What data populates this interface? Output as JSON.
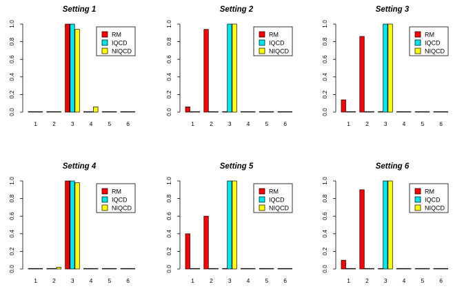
{
  "chart_data": [
    {
      "type": "bar",
      "title": "Setting 1",
      "categories": [
        "1",
        "2",
        "3",
        "4",
        "5",
        "6"
      ],
      "series": [
        {
          "name": "RM",
          "values": [
            0,
            0,
            1.0,
            0,
            0,
            0
          ]
        },
        {
          "name": "IQCD",
          "values": [
            0,
            0,
            1.0,
            0,
            0,
            0
          ]
        },
        {
          "name": "NIQCD",
          "values": [
            0,
            0,
            0.94,
            0.06,
            0,
            0
          ]
        }
      ],
      "ylim": [
        0,
        1
      ],
      "yticks": [
        "0.0",
        "0.2",
        "0.4",
        "0.6",
        "0.8",
        "1.0"
      ],
      "legend_position": "top-right"
    },
    {
      "type": "bar",
      "title": "Setting 2",
      "categories": [
        "1",
        "2",
        "3",
        "4",
        "5",
        "6"
      ],
      "series": [
        {
          "name": "RM",
          "values": [
            0.06,
            0.94,
            0,
            0,
            0,
            0
          ]
        },
        {
          "name": "IQCD",
          "values": [
            0,
            0,
            1.0,
            0,
            0,
            0
          ]
        },
        {
          "name": "NIQCD",
          "values": [
            0,
            0,
            1.0,
            0,
            0,
            0
          ]
        }
      ],
      "ylim": [
        0,
        1
      ],
      "yticks": [
        "0.0",
        "0.2",
        "0.4",
        "0.6",
        "0.8",
        "1.0"
      ],
      "legend_position": "top-right"
    },
    {
      "type": "bar",
      "title": "Setting 3",
      "categories": [
        "1",
        "2",
        "3",
        "4",
        "5",
        "6"
      ],
      "series": [
        {
          "name": "RM",
          "values": [
            0.14,
            0.86,
            0,
            0,
            0,
            0
          ]
        },
        {
          "name": "IQCD",
          "values": [
            0,
            0,
            1.0,
            0,
            0,
            0
          ]
        },
        {
          "name": "NIQCD",
          "values": [
            0,
            0,
            1.0,
            0,
            0,
            0
          ]
        }
      ],
      "ylim": [
        0,
        1
      ],
      "yticks": [
        "0.0",
        "0.2",
        "0.4",
        "0.6",
        "0.8",
        "1.0"
      ],
      "legend_position": "top-right"
    },
    {
      "type": "bar",
      "title": "Setting 4",
      "categories": [
        "1",
        "2",
        "3",
        "4",
        "5",
        "6"
      ],
      "series": [
        {
          "name": "RM",
          "values": [
            0,
            0,
            1.0,
            0,
            0,
            0
          ]
        },
        {
          "name": "IQCD",
          "values": [
            0,
            0,
            1.0,
            0,
            0,
            0
          ]
        },
        {
          "name": "NIQCD",
          "values": [
            0,
            0.02,
            0.98,
            0,
            0,
            0
          ]
        }
      ],
      "ylim": [
        0,
        1
      ],
      "yticks": [
        "0.0",
        "0.2",
        "0.4",
        "0.6",
        "0.8",
        "1.0"
      ],
      "legend_position": "top-right"
    },
    {
      "type": "bar",
      "title": "Setting 5",
      "categories": [
        "1",
        "2",
        "3",
        "4",
        "5",
        "6"
      ],
      "series": [
        {
          "name": "RM",
          "values": [
            0.4,
            0.6,
            0,
            0,
            0,
            0
          ]
        },
        {
          "name": "IQCD",
          "values": [
            0,
            0,
            1.0,
            0,
            0,
            0
          ]
        },
        {
          "name": "NIQCD",
          "values": [
            0,
            0,
            1.0,
            0,
            0,
            0
          ]
        }
      ],
      "ylim": [
        0,
        1
      ],
      "yticks": [
        "0.0",
        "0.2",
        "0.4",
        "0.6",
        "0.8",
        "1.0"
      ],
      "legend_position": "top-right"
    },
    {
      "type": "bar",
      "title": "Setting 6",
      "categories": [
        "1",
        "2",
        "3",
        "4",
        "5",
        "6"
      ],
      "series": [
        {
          "name": "RM",
          "values": [
            0.1,
            0.9,
            0,
            0,
            0,
            0
          ]
        },
        {
          "name": "IQCD",
          "values": [
            0,
            0,
            1.0,
            0,
            0,
            0
          ]
        },
        {
          "name": "NIQCD",
          "values": [
            0,
            0,
            1.0,
            0,
            0,
            0
          ]
        }
      ],
      "ylim": [
        0,
        1
      ],
      "yticks": [
        "0.0",
        "0.2",
        "0.4",
        "0.6",
        "0.8",
        "1.0"
      ],
      "legend_position": "top-right"
    }
  ],
  "colors": {
    "RM": "#ff0000",
    "IQCD": "#00e5ee",
    "NIQCD": "#ffff00",
    "outline": "#000000"
  }
}
